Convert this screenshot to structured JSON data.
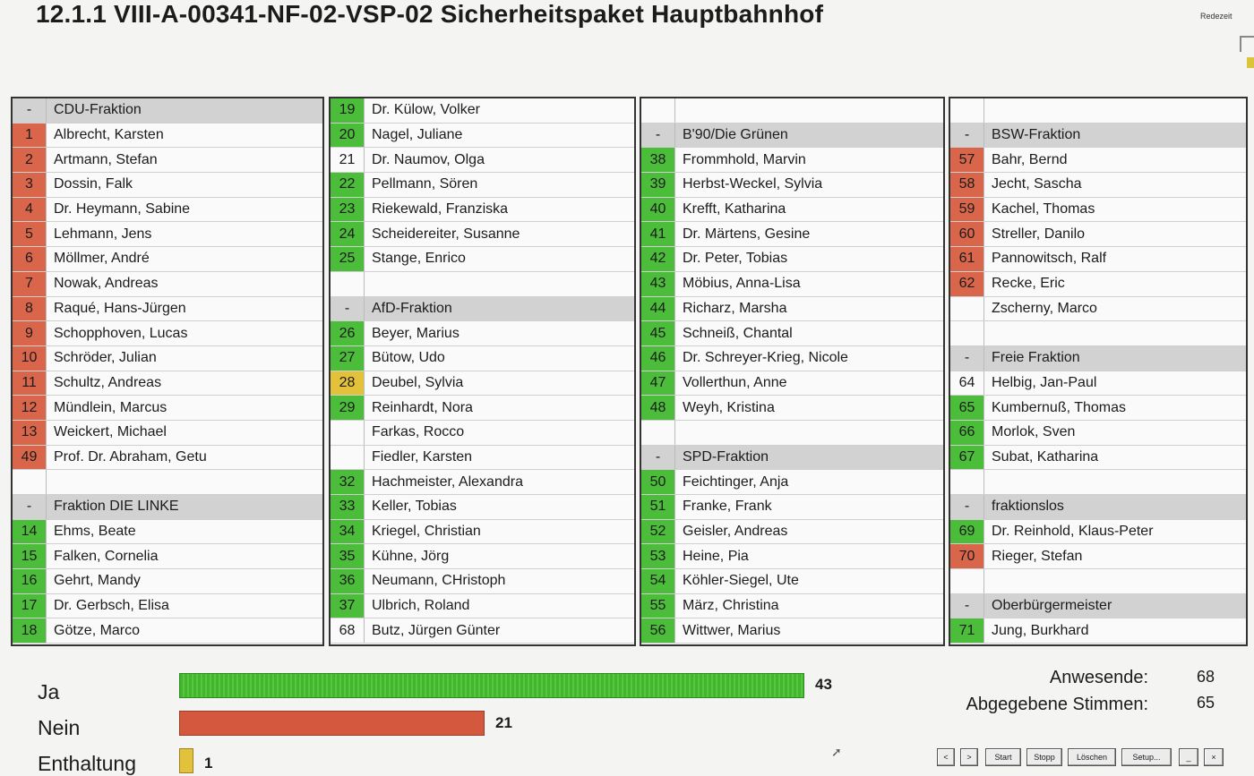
{
  "title": "12.1.1 VIII-A-00341-NF-02-VSP-02 Sicherheitspaket Hauptbahnhof",
  "redezeit_label": "Redezeit",
  "panels": [
    [
      {
        "type": "header",
        "num": "-",
        "name": "CDU-Fraktion"
      },
      {
        "num": "1",
        "name": "Albrecht, Karsten",
        "vote": "nein"
      },
      {
        "num": "2",
        "name": "Artmann, Stefan",
        "vote": "nein"
      },
      {
        "num": "3",
        "name": "Dossin, Falk",
        "vote": "nein"
      },
      {
        "num": "4",
        "name": "Dr. Heymann, Sabine",
        "vote": "nein"
      },
      {
        "num": "5",
        "name": "Lehmann, Jens",
        "vote": "nein"
      },
      {
        "num": "6",
        "name": "Möllmer, André",
        "vote": "nein"
      },
      {
        "num": "7",
        "name": "Nowak, Andreas",
        "vote": "nein"
      },
      {
        "num": "8",
        "name": "Raqué, Hans-Jürgen",
        "vote": "nein"
      },
      {
        "num": "9",
        "name": "Schopphoven, Lucas",
        "vote": "nein"
      },
      {
        "num": "10",
        "name": "Schröder, Julian",
        "vote": "nein"
      },
      {
        "num": "11",
        "name": "Schultz, Andreas",
        "vote": "nein"
      },
      {
        "num": "12",
        "name": "Mündlein, Marcus",
        "vote": "nein"
      },
      {
        "num": "13",
        "name": "Weickert, Michael",
        "vote": "nein"
      },
      {
        "num": "49",
        "name": "Prof. Dr. Abraham, Getu",
        "vote": "nein"
      },
      {
        "type": "empty"
      },
      {
        "type": "header",
        "num": "-",
        "name": "Fraktion DIE LINKE"
      },
      {
        "num": "14",
        "name": "Ehms, Beate",
        "vote": "ja"
      },
      {
        "num": "15",
        "name": "Falken, Cornelia",
        "vote": "ja"
      },
      {
        "num": "16",
        "name": "Gehrt, Mandy",
        "vote": "ja"
      },
      {
        "num": "17",
        "name": "Dr. Gerbsch, Elisa",
        "vote": "ja"
      },
      {
        "num": "18",
        "name": "Götze, Marco",
        "vote": "ja"
      }
    ],
    [
      {
        "num": "19",
        "name": "Dr. Külow, Volker",
        "vote": "ja"
      },
      {
        "num": "20",
        "name": "Nagel, Juliane",
        "vote": "ja"
      },
      {
        "num": "21",
        "name": "Dr. Naumov, Olga",
        "vote": "none"
      },
      {
        "num": "22",
        "name": "Pellmann, Sören",
        "vote": "ja"
      },
      {
        "num": "23",
        "name": "Riekewald, Franziska",
        "vote": "ja"
      },
      {
        "num": "24",
        "name": "Scheidereiter, Susanne",
        "vote": "ja"
      },
      {
        "num": "25",
        "name": "Stange, Enrico",
        "vote": "ja"
      },
      {
        "type": "empty"
      },
      {
        "type": "header",
        "num": "-",
        "name": "AfD-Fraktion"
      },
      {
        "num": "26",
        "name": "Beyer, Marius",
        "vote": "ja"
      },
      {
        "num": "27",
        "name": "Bütow, Udo",
        "vote": "ja"
      },
      {
        "num": "28",
        "name": "Deubel, Sylvia",
        "vote": "enth"
      },
      {
        "num": "29",
        "name": "Reinhardt, Nora",
        "vote": "ja"
      },
      {
        "num": "",
        "name": "Farkas, Rocco",
        "vote": "none"
      },
      {
        "num": "",
        "name": "Fiedler, Karsten",
        "vote": "none"
      },
      {
        "num": "32",
        "name": "Hachmeister, Alexandra",
        "vote": "ja"
      },
      {
        "num": "33",
        "name": "Keller, Tobias",
        "vote": "ja"
      },
      {
        "num": "34",
        "name": "Kriegel, Christian",
        "vote": "ja"
      },
      {
        "num": "35",
        "name": "Kühne, Jörg",
        "vote": "ja"
      },
      {
        "num": "36",
        "name": "Neumann, CHristoph",
        "vote": "ja"
      },
      {
        "num": "37",
        "name": "Ulbrich, Roland",
        "vote": "ja"
      },
      {
        "num": "68",
        "name": "Butz, Jürgen Günter",
        "vote": "none"
      }
    ],
    [
      {
        "type": "empty"
      },
      {
        "type": "header",
        "num": "-",
        "name": "B'90/Die Grünen"
      },
      {
        "num": "38",
        "name": "Frommhold, Marvin",
        "vote": "ja"
      },
      {
        "num": "39",
        "name": "Herbst-Weckel, Sylvia",
        "vote": "ja"
      },
      {
        "num": "40",
        "name": "Krefft, Katharina",
        "vote": "ja"
      },
      {
        "num": "41",
        "name": "Dr. Märtens, Gesine",
        "vote": "ja"
      },
      {
        "num": "42",
        "name": "Dr. Peter, Tobias",
        "vote": "ja"
      },
      {
        "num": "43",
        "name": "Möbius, Anna-Lisa",
        "vote": "ja"
      },
      {
        "num": "44",
        "name": "Richarz, Marsha",
        "vote": "ja"
      },
      {
        "num": "45",
        "name": "Schneiß, Chantal",
        "vote": "ja"
      },
      {
        "num": "46",
        "name": "Dr. Schreyer-Krieg, Nicole",
        "vote": "ja"
      },
      {
        "num": "47",
        "name": "Vollerthun, Anne",
        "vote": "ja"
      },
      {
        "num": "48",
        "name": "Weyh, Kristina",
        "vote": "ja"
      },
      {
        "type": "empty"
      },
      {
        "type": "header",
        "num": "-",
        "name": "SPD-Fraktion"
      },
      {
        "num": "50",
        "name": "Feichtinger, Anja",
        "vote": "ja"
      },
      {
        "num": "51",
        "name": "Franke, Frank",
        "vote": "ja"
      },
      {
        "num": "52",
        "name": "Geisler, Andreas",
        "vote": "ja"
      },
      {
        "num": "53",
        "name": "Heine, Pia",
        "vote": "ja"
      },
      {
        "num": "54",
        "name": "Köhler-Siegel, Ute",
        "vote": "ja"
      },
      {
        "num": "55",
        "name": "März, Christina",
        "vote": "ja"
      },
      {
        "num": "56",
        "name": "Wittwer, Marius",
        "vote": "ja"
      }
    ],
    [
      {
        "type": "empty"
      },
      {
        "type": "header",
        "num": "-",
        "name": "BSW-Fraktion"
      },
      {
        "num": "57",
        "name": "Bahr, Bernd",
        "vote": "nein"
      },
      {
        "num": "58",
        "name": "Jecht, Sascha",
        "vote": "nein"
      },
      {
        "num": "59",
        "name": "Kachel, Thomas",
        "vote": "nein"
      },
      {
        "num": "60",
        "name": "Streller, Danilo",
        "vote": "nein"
      },
      {
        "num": "61",
        "name": "Pannowitsch, Ralf",
        "vote": "nein"
      },
      {
        "num": "62",
        "name": "Recke, Eric",
        "vote": "nein"
      },
      {
        "num": "",
        "name": "Zscherny, Marco",
        "vote": "none"
      },
      {
        "type": "empty"
      },
      {
        "type": "header",
        "num": "-",
        "name": "Freie Fraktion"
      },
      {
        "num": "64",
        "name": "Helbig, Jan-Paul",
        "vote": "none"
      },
      {
        "num": "65",
        "name": "Kumbernuß, Thomas",
        "vote": "ja"
      },
      {
        "num": "66",
        "name": "Morlok, Sven",
        "vote": "ja"
      },
      {
        "num": "67",
        "name": "Subat, Katharina",
        "vote": "ja"
      },
      {
        "type": "empty"
      },
      {
        "type": "header",
        "num": "-",
        "name": "fraktionslos"
      },
      {
        "num": "69",
        "name": "Dr. Reinhold, Klaus-Peter",
        "vote": "ja"
      },
      {
        "num": "70",
        "name": "Rieger, Stefan",
        "vote": "nein"
      },
      {
        "type": "empty"
      },
      {
        "type": "header",
        "num": "-",
        "name": "Oberbürgermeister"
      },
      {
        "num": "71",
        "name": "Jung, Burkhard",
        "vote": "ja"
      }
    ]
  ],
  "results": {
    "ja_label": "Ja",
    "ja_count": "43",
    "ja_value": 43,
    "nein_label": "Nein",
    "nein_count": "21",
    "nein_value": 21,
    "enth_label": "Enthaltung",
    "enth_count": "1",
    "enth_value": 1
  },
  "stats": {
    "anwesende_label": "Anwesende:",
    "anwesende_value": "68",
    "abgegeben_label": "Abgegebene Stimmen:",
    "abgegeben_value": "65"
  },
  "controls": {
    "prev": "<",
    "next": ">",
    "start": "Start",
    "stopp": "Stopp",
    "loeschen": "Löschen",
    "setup": "Setup...",
    "minimize": "_",
    "close": "×"
  },
  "colors": {
    "ja": "#4cbd3a",
    "nein": "#d9664a",
    "enthaltung": "#e3c23a",
    "header": "#d2d2d2"
  }
}
